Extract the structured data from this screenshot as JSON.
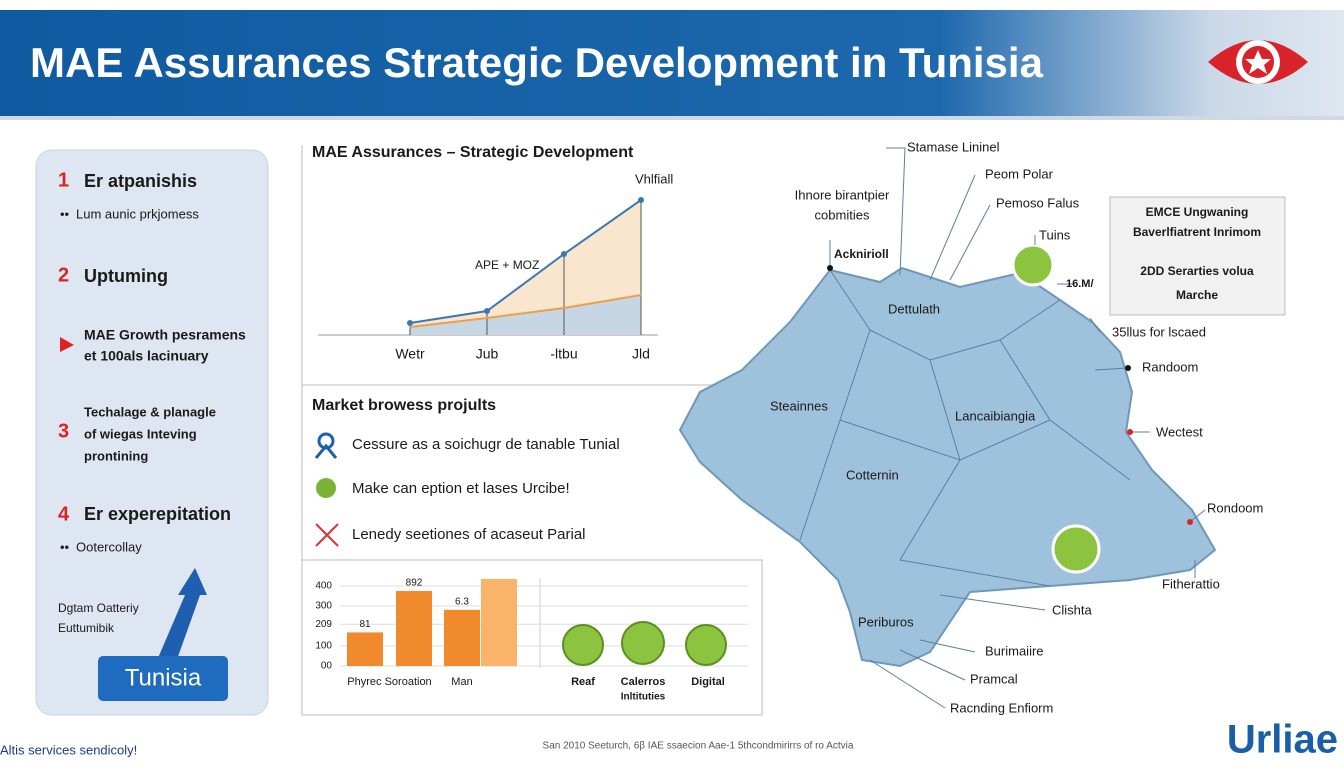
{
  "header": {
    "title": "MAE Assurances Strategic Development in Tunisia"
  },
  "left_panel": {
    "items": [
      {
        "number": "1",
        "title": "Er atpanishis",
        "note": "Lum aunic prkjomess"
      },
      {
        "number": "2",
        "title": "Uptuming"
      },
      {
        "lines": [
          "MAE Growth pesramens",
          "et 100als lacinuary"
        ]
      },
      {
        "number": "3",
        "lines": [
          "Techalage & planagle",
          "of wiegas Inteving",
          "prontining"
        ]
      },
      {
        "number": "4",
        "title": "Er experepitation",
        "note": "Ootercollay"
      }
    ],
    "footer_lines": [
      "Dgtam Oatteriy",
      "Euttumibik"
    ],
    "badge": "Tunisia"
  },
  "line_chart": {
    "type": "line",
    "title": "MAE Assurances – Strategic Development",
    "categories": [
      "Wetr",
      "Jub",
      "-ltbu",
      "Jld"
    ],
    "ylim": [
      0,
      150
    ],
    "series": [
      {
        "color": "#3a78b5",
        "values": [
          12,
          24,
          81,
          135
        ]
      },
      {
        "color": "#e9a04a",
        "values": [
          8,
          17,
          27,
          40
        ]
      }
    ],
    "annotations": [
      "Vhlfiall",
      "APE + MOZ"
    ]
  },
  "market": {
    "title": "Market browess projults",
    "items": [
      "Cessure as a soichugr de tanable Tunial",
      "Make can eption et lases Urcibe!",
      "Lenedy seetiones of acaseut Parial"
    ]
  },
  "bar_chart": {
    "type": "bar",
    "categories": [
      "Phyrec Soroation",
      null,
      "Man",
      null
    ],
    "values": [
      168,
      375,
      281,
      435
    ],
    "colors": [
      "#f08a2c",
      "#f08a2c",
      "#f08a2c",
      "#f9b36a"
    ],
    "annotations": [
      "81",
      "892",
      "6.3"
    ],
    "ylim": [
      0,
      440
    ],
    "yticks": [
      {
        "value": 0,
        "label": "00"
      },
      100,
      209,
      300,
      400
    ],
    "grid": true
  },
  "icons": {
    "labels": [
      "Reaf",
      "Calerros",
      "Digital"
    ],
    "sublabel": "Inltituties"
  },
  "map": {
    "regions": [
      "Dettulath",
      "Steainnes",
      "Lancaibiangia",
      "Cotternin",
      "Periburos"
    ],
    "callouts": [
      "Stamase Lininel",
      "Peom Polar",
      "Pemoso Falus",
      "Tuins",
      "Acknirioll",
      "16.M/",
      "35llus for lscaed",
      "Randoom",
      "Wectest",
      "Rondoom",
      "Fitherattio",
      "Clishta",
      "Burimaiire",
      "Pramcal",
      "Racnding Enfiorm"
    ],
    "note_lines": [
      "Ihnore birantpier",
      "cobmities"
    ],
    "info_box": [
      "EMCE Ungwaning",
      "Baverlfiatrent Inrimom",
      "2DD Serarties volua",
      "Marche"
    ]
  },
  "footer": {
    "left": "Altis services sendicoly!",
    "center": "San 2010 Seeturch, 6β IAE ssaecion Aae-1 5thcondmirirrs of ro Actvia",
    "logo": "Urliae"
  }
}
